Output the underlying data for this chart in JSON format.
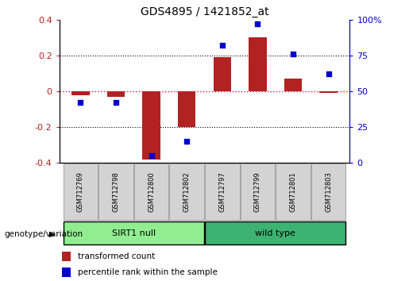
{
  "title": "GDS4895 / 1421852_at",
  "samples": [
    "GSM712769",
    "GSM712798",
    "GSM712800",
    "GSM712802",
    "GSM712797",
    "GSM712799",
    "GSM712801",
    "GSM712803"
  ],
  "groups": [
    {
      "name": "SIRT1 null",
      "indices": [
        0,
        1,
        2,
        3
      ],
      "color": "#90EE90"
    },
    {
      "name": "wild type",
      "indices": [
        4,
        5,
        6,
        7
      ],
      "color": "#3CB371"
    }
  ],
  "bar_values": [
    -0.02,
    -0.03,
    -0.38,
    -0.2,
    0.19,
    0.3,
    0.07,
    -0.01
  ],
  "dot_values": [
    42,
    42,
    5,
    15,
    82,
    97,
    76,
    62
  ],
  "ylim_left": [
    -0.4,
    0.4
  ],
  "ylim_right": [
    0,
    100
  ],
  "yticks_left": [
    -0.4,
    -0.2,
    0.0,
    0.2,
    0.4
  ],
  "yticks_right": [
    0,
    25,
    50,
    75,
    100
  ],
  "bar_color": "#B22222",
  "dot_color": "#0000CD",
  "hline_color": "#DC143C",
  "grid_color": "black",
  "label_bar": "transformed count",
  "label_dot": "percentile rank within the sample",
  "group_label": "genotype/variation",
  "bar_width": 0.5,
  "sample_box_color": "#D3D3D3",
  "sample_box_edge": "#999999",
  "fig_width": 5.15,
  "fig_height": 3.54
}
